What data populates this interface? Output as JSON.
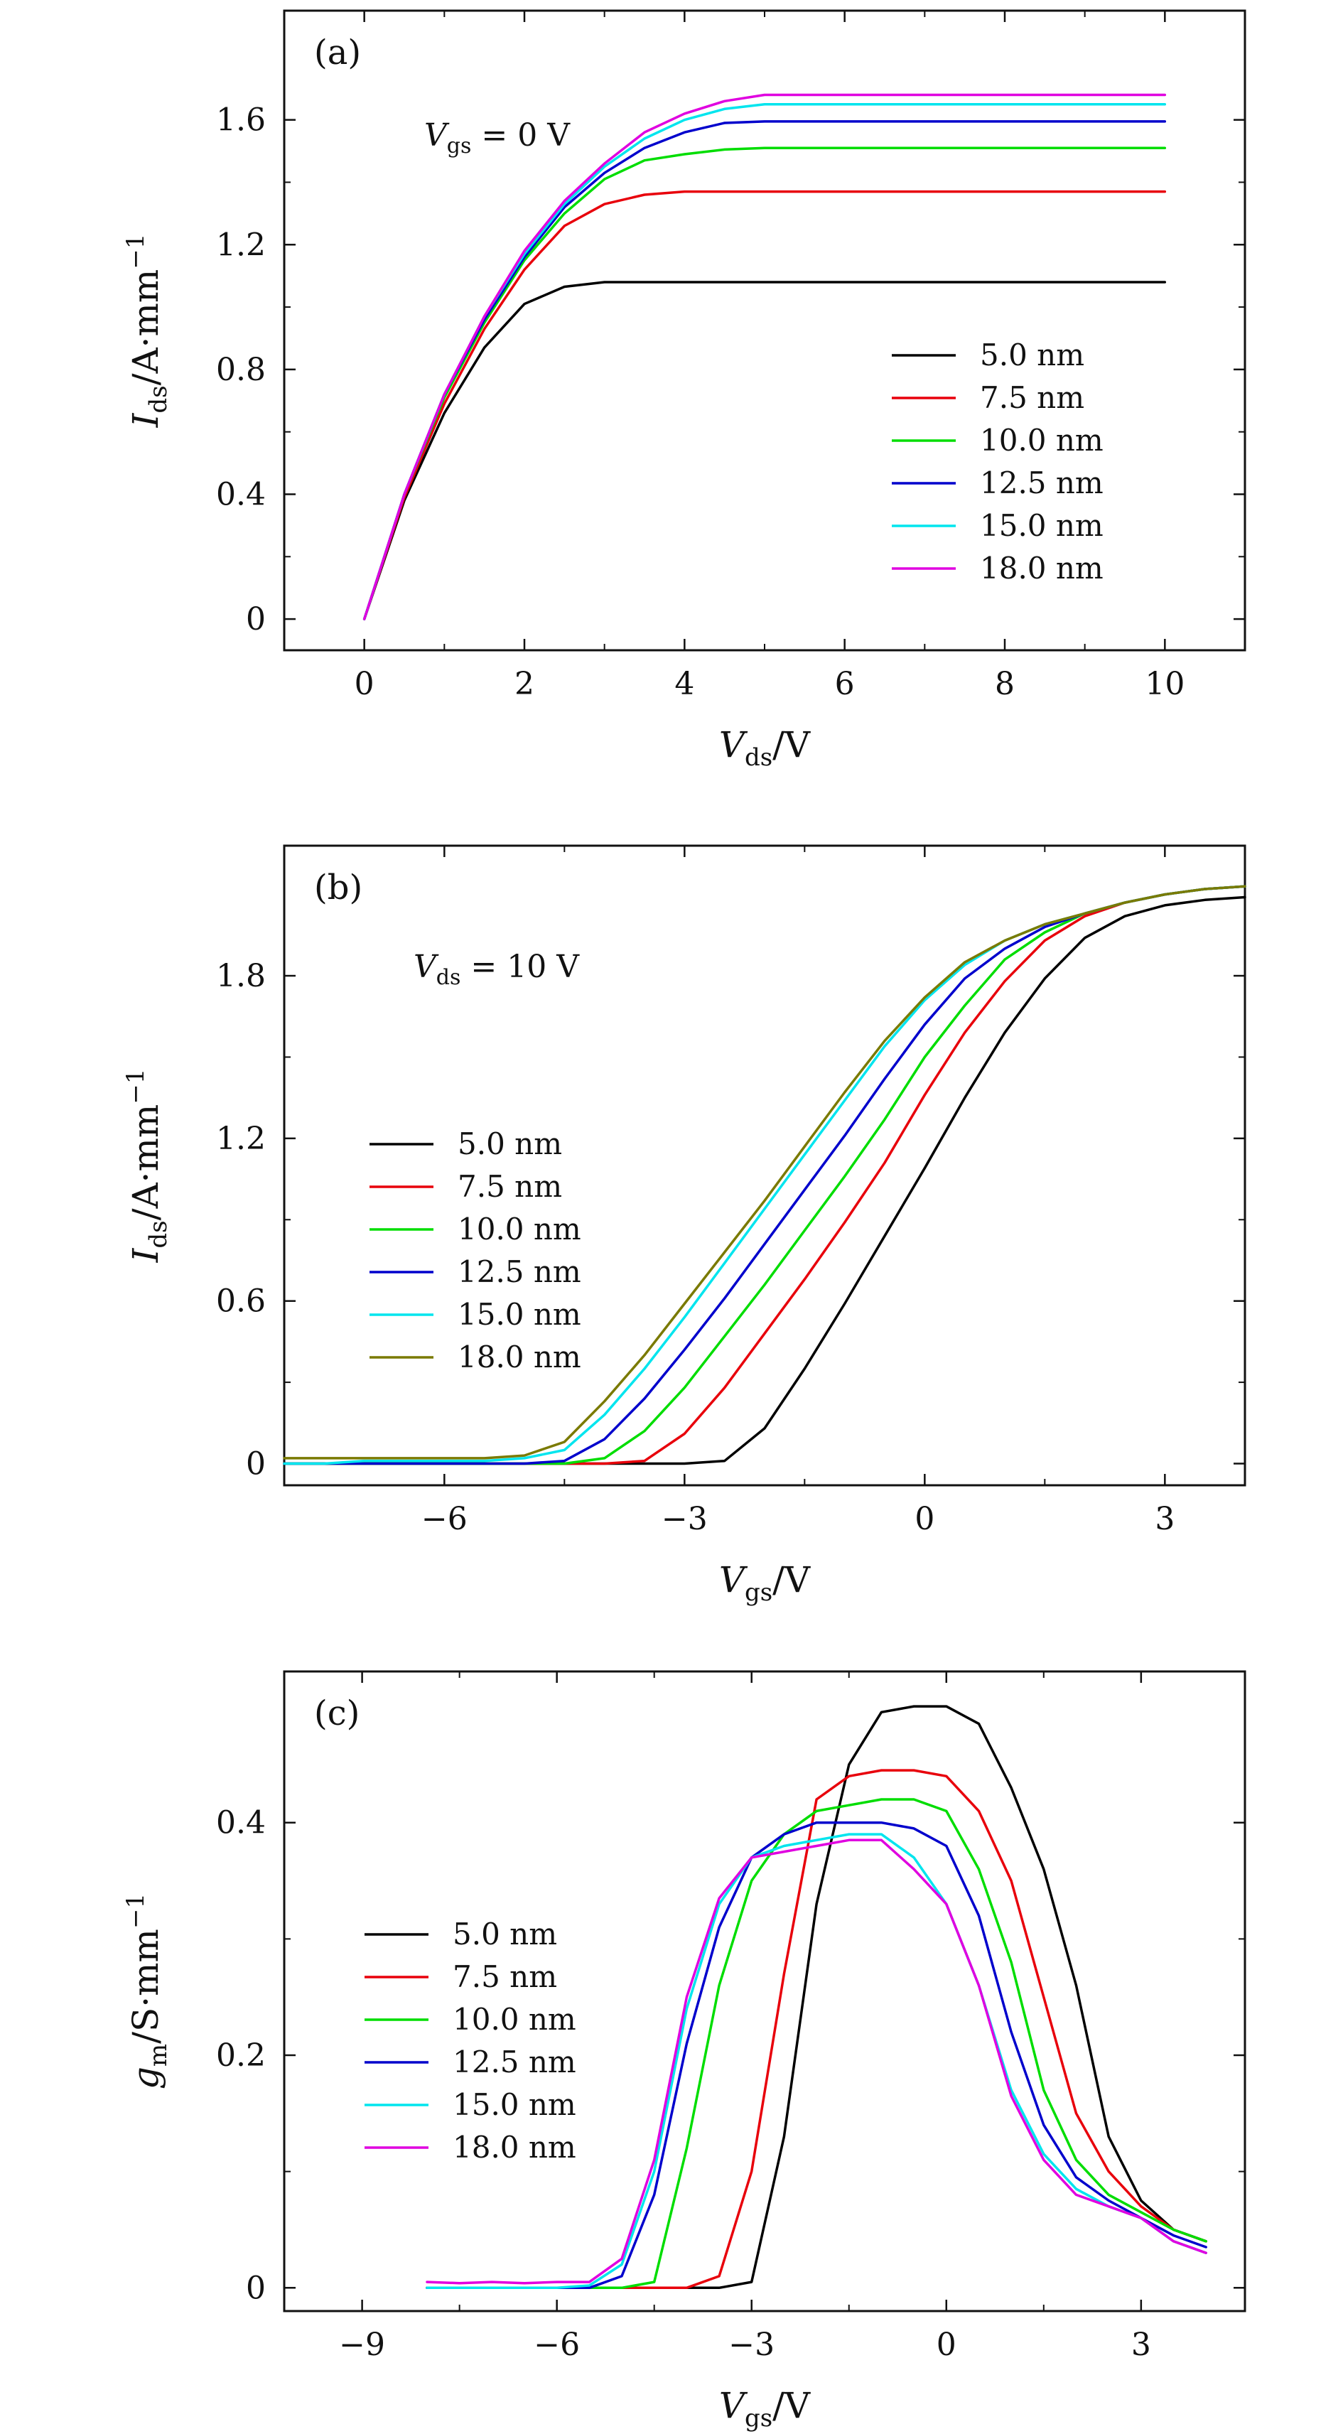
{
  "chart_data": [
    {
      "panel_label": "(a)",
      "type": "line",
      "annotation": {
        "var_main": "V",
        "var_sub": "gs",
        "rest": " = 0 V"
      },
      "xlabel": {
        "main": "V",
        "sub": "ds",
        "rest": "/V"
      },
      "ylabel": {
        "main": "I",
        "sub": "ds",
        "rest": "/A·mm",
        "sup": "−1"
      },
      "xlim": [
        -1,
        11
      ],
      "ylim": [
        -0.1,
        1.95
      ],
      "xticks": [
        0,
        2,
        4,
        6,
        8,
        10
      ],
      "xticklabels": [
        "0",
        "2",
        "4",
        "6",
        "8",
        "10"
      ],
      "yticks": [
        0,
        0.4,
        0.8,
        1.2,
        1.6
      ],
      "yticklabels": [
        "0",
        "0.4",
        "0.8",
        "1.2",
        "1.6"
      ],
      "grid": false,
      "legend_position": "center-right",
      "x": [
        0,
        0.5,
        1.0,
        1.5,
        2.0,
        2.5,
        3.0,
        3.5,
        4.0,
        4.5,
        5.0,
        5.5,
        6.0,
        6.5,
        7.0,
        7.5,
        8.0,
        8.5,
        9.0,
        9.5,
        10.0
      ],
      "series": [
        {
          "name": "5.0 nm",
          "color": "#000000",
          "values": [
            0,
            0.38,
            0.66,
            0.87,
            1.01,
            1.065,
            1.08,
            1.08,
            1.08,
            1.08,
            1.08,
            1.08,
            1.08,
            1.08,
            1.08,
            1.08,
            1.08,
            1.08,
            1.08,
            1.08,
            1.08
          ]
        },
        {
          "name": "7.5 nm",
          "color": "#e8000b",
          "values": [
            0,
            0.39,
            0.69,
            0.93,
            1.12,
            1.26,
            1.33,
            1.36,
            1.37,
            1.37,
            1.37,
            1.37,
            1.37,
            1.37,
            1.37,
            1.37,
            1.37,
            1.37,
            1.37,
            1.37,
            1.37
          ]
        },
        {
          "name": "10.0 nm",
          "color": "#00dd00",
          "values": [
            0,
            0.4,
            0.71,
            0.95,
            1.15,
            1.3,
            1.41,
            1.47,
            1.49,
            1.505,
            1.51,
            1.51,
            1.51,
            1.51,
            1.51,
            1.51,
            1.51,
            1.51,
            1.51,
            1.51,
            1.51
          ]
        },
        {
          "name": "12.5 nm",
          "color": "#0000cc",
          "values": [
            0,
            0.4,
            0.72,
            0.96,
            1.16,
            1.32,
            1.43,
            1.51,
            1.56,
            1.59,
            1.595,
            1.595,
            1.595,
            1.595,
            1.595,
            1.595,
            1.595,
            1.595,
            1.595,
            1.595,
            1.595
          ]
        },
        {
          "name": "15.0 nm",
          "color": "#00e5ee",
          "values": [
            0,
            0.4,
            0.72,
            0.97,
            1.17,
            1.33,
            1.45,
            1.54,
            1.6,
            1.635,
            1.65,
            1.65,
            1.65,
            1.65,
            1.65,
            1.65,
            1.65,
            1.65,
            1.65,
            1.65,
            1.65
          ]
        },
        {
          "name": "18.0 nm",
          "color": "#e000e0",
          "values": [
            0,
            0.4,
            0.72,
            0.97,
            1.18,
            1.34,
            1.46,
            1.56,
            1.62,
            1.66,
            1.68,
            1.68,
            1.68,
            1.68,
            1.68,
            1.68,
            1.68,
            1.68,
            1.68,
            1.68,
            1.68
          ]
        }
      ]
    },
    {
      "panel_label": "(b)",
      "type": "line",
      "annotation": {
        "var_main": "V",
        "var_sub": "ds",
        "rest": " = 10 V"
      },
      "xlabel": {
        "main": "V",
        "sub": "gs",
        "rest": "/V"
      },
      "ylabel": {
        "main": "I",
        "sub": "ds",
        "rest": "/A·mm",
        "sup": "−1"
      },
      "xlim": [
        -8,
        4
      ],
      "ylim": [
        -0.08,
        2.28
      ],
      "xticks": [
        -6,
        -3,
        0,
        3
      ],
      "xticklabels": [
        "−6",
        "−3",
        "0",
        "3"
      ],
      "yticks": [
        0,
        0.6,
        1.2,
        1.8
      ],
      "yticklabels": [
        "0",
        "0.6",
        "1.2",
        "1.8"
      ],
      "grid": false,
      "legend_position": "center-left",
      "x": [
        -8,
        -7.5,
        -7,
        -6.5,
        -6,
        -5.5,
        -5,
        -4.5,
        -4,
        -3.5,
        -3,
        -2.5,
        -2,
        -1.5,
        -1,
        -0.5,
        0,
        0.5,
        1,
        1.5,
        2,
        2.5,
        3,
        3.5,
        4
      ],
      "series": [
        {
          "name": "5.0 nm",
          "color": "#000000",
          "values": [
            0,
            0,
            0,
            0,
            0,
            0,
            0,
            0,
            0,
            0,
            0,
            0.01,
            0.13,
            0.35,
            0.59,
            0.84,
            1.09,
            1.35,
            1.59,
            1.79,
            1.94,
            2.02,
            2.06,
            2.08,
            2.09
          ]
        },
        {
          "name": "7.5 nm",
          "color": "#e8000b",
          "values": [
            0,
            0,
            0,
            0,
            0,
            0,
            0,
            0,
            0,
            0.01,
            0.11,
            0.28,
            0.48,
            0.68,
            0.89,
            1.11,
            1.36,
            1.59,
            1.78,
            1.93,
            2.02,
            2.07,
            2.1,
            2.12,
            2.13
          ]
        },
        {
          "name": "10.0 nm",
          "color": "#00dd00",
          "values": [
            0,
            0,
            0,
            0,
            0,
            0,
            0,
            0,
            0.02,
            0.12,
            0.28,
            0.47,
            0.66,
            0.86,
            1.06,
            1.27,
            1.5,
            1.69,
            1.86,
            1.96,
            2.03,
            2.07,
            2.1,
            2.12,
            2.13
          ]
        },
        {
          "name": "12.5 nm",
          "color": "#0000cc",
          "values": [
            0,
            0,
            0,
            0,
            0,
            0,
            0,
            0.01,
            0.09,
            0.24,
            0.42,
            0.61,
            0.81,
            1.01,
            1.21,
            1.42,
            1.62,
            1.79,
            1.9,
            1.98,
            2.03,
            2.07,
            2.1,
            2.12,
            2.13
          ]
        },
        {
          "name": "15.0 nm",
          "color": "#00e5ee",
          "values": [
            0,
            0,
            0.01,
            0.01,
            0.01,
            0.01,
            0.02,
            0.05,
            0.18,
            0.35,
            0.54,
            0.74,
            0.94,
            1.14,
            1.34,
            1.54,
            1.71,
            1.84,
            1.93,
            1.99,
            2.03,
            2.07,
            2.1,
            2.12,
            2.13
          ]
        },
        {
          "name": "18.0 nm",
          "color": "#7a7a00",
          "values": [
            0.02,
            0.02,
            0.02,
            0.02,
            0.02,
            0.02,
            0.03,
            0.08,
            0.23,
            0.4,
            0.59,
            0.78,
            0.97,
            1.17,
            1.37,
            1.56,
            1.72,
            1.85,
            1.93,
            1.99,
            2.03,
            2.07,
            2.1,
            2.12,
            2.13
          ]
        }
      ]
    },
    {
      "panel_label": "(c)",
      "type": "line",
      "annotation": null,
      "xlabel": {
        "main": "V",
        "sub": "gs",
        "rest": "/V"
      },
      "ylabel": {
        "main": "g",
        "sub": "m",
        "rest": "/S·mm",
        "sup": "−1"
      },
      "xlim": [
        -10.2,
        4.6
      ],
      "ylim": [
        -0.02,
        0.53
      ],
      "xticks": [
        -9,
        -6,
        -3,
        0,
        3
      ],
      "xticklabels": [
        "−9",
        "−6",
        "−3",
        "0",
        "3"
      ],
      "yticks": [
        0,
        0.2,
        0.4
      ],
      "yticklabels": [
        "0",
        "0.2",
        "0.4"
      ],
      "grid": false,
      "legend_position": "center-left",
      "x": [
        -8,
        -7.5,
        -7,
        -6.5,
        -6,
        -5.5,
        -5,
        -4.5,
        -4,
        -3.5,
        -3,
        -2.5,
        -2,
        -1.5,
        -1,
        -0.5,
        0,
        0.5,
        1,
        1.5,
        2,
        2.5,
        3,
        3.5,
        4
      ],
      "series": [
        {
          "name": "5.0 nm",
          "color": "#000000",
          "values": [
            0,
            0,
            0,
            0,
            0,
            0,
            0,
            0,
            0,
            0,
            0.005,
            0.13,
            0.33,
            0.45,
            0.495,
            0.5,
            0.5,
            0.485,
            0.43,
            0.36,
            0.26,
            0.13,
            0.075,
            0.05,
            0.04
          ]
        },
        {
          "name": "7.5 nm",
          "color": "#e8000b",
          "values": [
            0,
            0,
            0,
            0,
            0,
            0,
            0,
            0,
            0,
            0.01,
            0.1,
            0.27,
            0.42,
            0.44,
            0.445,
            0.445,
            0.44,
            0.41,
            0.35,
            0.25,
            0.15,
            0.1,
            0.07,
            0.05,
            0.04
          ]
        },
        {
          "name": "10.0 nm",
          "color": "#00dd00",
          "values": [
            0,
            0,
            0,
            0,
            0,
            0,
            0,
            0.005,
            0.12,
            0.26,
            0.35,
            0.39,
            0.41,
            0.415,
            0.42,
            0.42,
            0.41,
            0.36,
            0.28,
            0.17,
            0.11,
            0.08,
            0.065,
            0.05,
            0.04
          ]
        },
        {
          "name": "12.5 nm",
          "color": "#0000cc",
          "values": [
            0,
            0,
            0,
            0,
            0,
            0,
            0.01,
            0.08,
            0.21,
            0.31,
            0.37,
            0.39,
            0.4,
            0.4,
            0.4,
            0.395,
            0.38,
            0.32,
            0.22,
            0.14,
            0.095,
            0.075,
            0.06,
            0.045,
            0.035
          ]
        },
        {
          "name": "15.0 nm",
          "color": "#00e5ee",
          "values": [
            0,
            0,
            0,
            0,
            0,
            0.002,
            0.02,
            0.1,
            0.24,
            0.33,
            0.37,
            0.38,
            0.385,
            0.39,
            0.39,
            0.37,
            0.33,
            0.26,
            0.17,
            0.115,
            0.085,
            0.07,
            0.06,
            0.04,
            0.03
          ]
        },
        {
          "name": "18.0 nm",
          "color": "#e000e0",
          "values": [
            0.005,
            0.004,
            0.005,
            0.004,
            0.005,
            0.005,
            0.025,
            0.11,
            0.25,
            0.335,
            0.37,
            0.375,
            0.38,
            0.385,
            0.385,
            0.36,
            0.33,
            0.26,
            0.165,
            0.11,
            0.08,
            0.07,
            0.06,
            0.04,
            0.03
          ]
        }
      ]
    }
  ]
}
